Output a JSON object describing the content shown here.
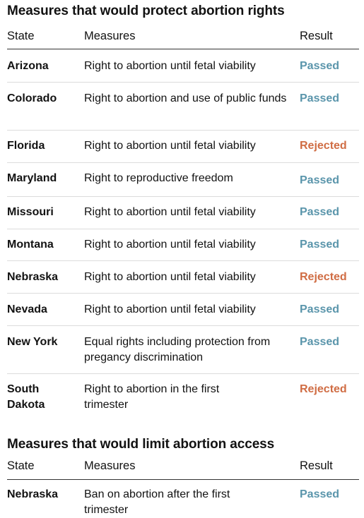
{
  "colors": {
    "passed": "#5a95ab",
    "rejected": "#d06d44"
  },
  "protect": {
    "title": "Measures that would protect abortion rights",
    "headers": {
      "state": "State",
      "measures": "Measures",
      "result": "Result"
    },
    "rows": [
      {
        "state": "Arizona",
        "measure": "Right to abortion until fetal viability",
        "result": "Passed",
        "status": "passed"
      },
      {
        "state": "Colorado",
        "measure": "Right to abortion and use of public funds",
        "result": "Passed",
        "status": "passed"
      },
      {
        "state": "Florida",
        "measure": "Right to abortion until fetal viability",
        "result": "Rejected",
        "status": "rejected"
      },
      {
        "state": "Maryland",
        "measure": "Right to reproductive freedom",
        "result": "Passed",
        "status": "passed"
      },
      {
        "state": "Missouri",
        "measure": "Right to abortion until fetal viability",
        "result": "Passed",
        "status": "passed"
      },
      {
        "state": "Montana",
        "measure": "Right to abortion until fetal viability",
        "result": "Passed",
        "status": "passed"
      },
      {
        "state": "Nebraska",
        "measure": "Right to abortion until fetal viability",
        "result": "Rejected",
        "status": "rejected"
      },
      {
        "state": "Nevada",
        "measure": "Right to abortion until fetal viability",
        "result": "Passed",
        "status": "passed"
      },
      {
        "state": "New York",
        "measure": "Equal rights including protection from pregancy discrimination",
        "result": "Passed",
        "status": "passed"
      },
      {
        "state": "South Dakota",
        "measure": "Right to abortion in the first trimester",
        "result": "Rejected",
        "status": "rejected"
      }
    ]
  },
  "limit": {
    "title": "Measures that would limit abortion access",
    "headers": {
      "state": "State",
      "measures": "Measures",
      "result": "Result"
    },
    "rows": [
      {
        "state": "Nebraska",
        "measure": "Ban on abortion after the first trimester",
        "result": "Passed",
        "status": "passed"
      }
    ]
  }
}
